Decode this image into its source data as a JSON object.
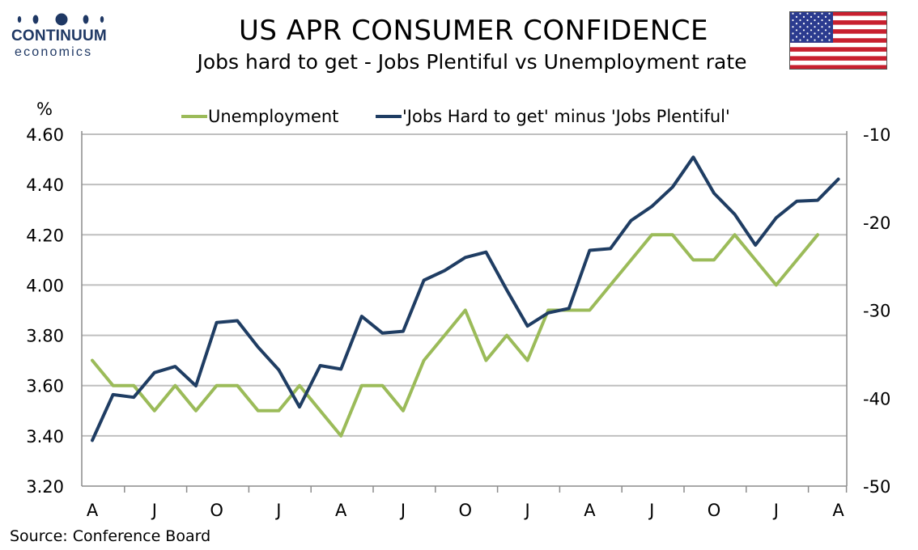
{
  "logo": {
    "name": "CONTINUUM",
    "sub": "economics"
  },
  "title": "US APR CONSUMER CONFIDENCE",
  "subtitle": "Jobs hard to get - Jobs Plentiful vs Unemployment rate",
  "source": "Source: Conference Board",
  "flag_icon": "us-flag-icon",
  "colors": {
    "unemployment": "#9bbb59",
    "jobs_diff": "#1f3d63",
    "grid": "#bfbfbf",
    "logo": "#1f3864"
  },
  "chart_data": {
    "type": "line",
    "left_axis_unit": "%",
    "left_ylim": [
      3.2,
      4.6
    ],
    "left_ticks": [
      "3.20",
      "3.40",
      "3.60",
      "3.80",
      "4.00",
      "4.20",
      "4.40",
      "4.60"
    ],
    "right_ylim": [
      -50,
      -10
    ],
    "right_ticks": [
      "-50",
      "-40",
      "-30",
      "-20",
      "-10"
    ],
    "x_tick_labels": [
      "A",
      "J",
      "O",
      "J",
      "A",
      "J",
      "O",
      "J",
      "A",
      "J",
      "O",
      "J",
      "A"
    ],
    "grid": "horizontal",
    "legend_position": "top-center",
    "series": [
      {
        "name": "Unemployment",
        "axis": "left",
        "values": [
          3.7,
          3.6,
          3.6,
          3.5,
          3.6,
          3.5,
          3.6,
          3.6,
          3.5,
          3.5,
          3.6,
          3.5,
          3.4,
          3.6,
          3.6,
          3.5,
          3.7,
          3.8,
          3.9,
          3.7,
          3.8,
          3.7,
          3.9,
          3.9,
          3.9,
          4.0,
          4.1,
          4.2,
          4.2,
          4.1,
          4.1,
          4.2,
          4.1,
          4.0,
          4.1,
          4.2
        ]
      },
      {
        "name": "'Jobs Hard to get' minus 'Jobs Plentiful'",
        "axis": "right",
        "values": [
          -44.8,
          -39.6,
          -39.9,
          -37.1,
          -36.4,
          -38.6,
          -31.4,
          -31.2,
          -34.2,
          -36.8,
          -41.0,
          -36.3,
          -36.7,
          -30.7,
          -32.6,
          -32.4,
          -26.6,
          -25.5,
          -24.0,
          -23.4,
          -27.7,
          -31.8,
          -30.3,
          -29.8,
          -23.2,
          -23.0,
          -19.8,
          -18.2,
          -16.0,
          -12.6,
          -16.7,
          -19.1,
          -22.6,
          -19.5,
          -17.6,
          -17.5,
          -15.1
        ]
      }
    ]
  }
}
